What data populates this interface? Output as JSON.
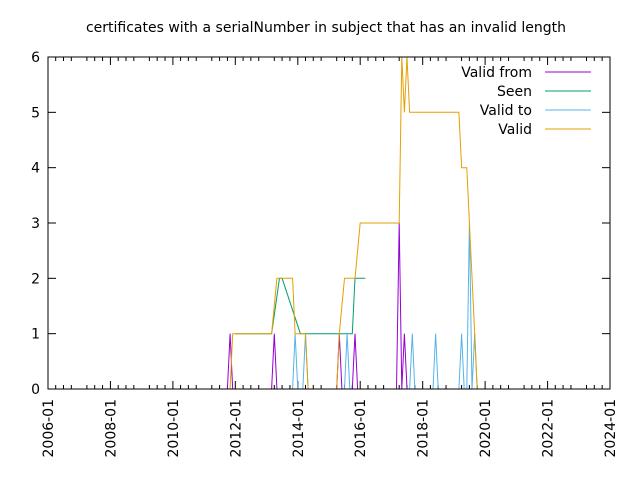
{
  "chart_data": {
    "type": "line",
    "title": "certificates with a serialNumber in subject that has an invalid length",
    "xlabel": "",
    "ylabel": "",
    "x_axis": "date",
    "xlim": [
      "2006-01-01",
      "2024-01-01"
    ],
    "ylim": [
      0,
      6
    ],
    "x_ticks": [
      "2006-01",
      "2008-01",
      "2010-01",
      "2012-01",
      "2014-01",
      "2016-01",
      "2018-01",
      "2020-01",
      "2022-01",
      "2024-01"
    ],
    "y_ticks": [
      0,
      1,
      2,
      3,
      4,
      5,
      6
    ],
    "grid": false,
    "legend_position": "top-right",
    "series": [
      {
        "name": "Valid from",
        "color": "#9400d3",
        "points": [
          [
            "2011-10-01",
            0
          ],
          [
            "2011-11-01",
            1
          ],
          [
            "2011-12-01",
            0
          ],
          [
            "2013-03-01",
            0
          ],
          [
            "2013-04-01",
            1
          ],
          [
            "2013-05-01",
            0
          ],
          [
            "2015-04-01",
            0
          ],
          [
            "2015-05-01",
            1
          ],
          [
            "2015-06-01",
            0
          ],
          [
            "2015-10-01",
            0
          ],
          [
            "2015-11-01",
            1
          ],
          [
            "2015-12-01",
            0
          ],
          [
            "2017-03-01",
            0
          ],
          [
            "2017-04-01",
            3
          ],
          [
            "2017-05-01",
            0
          ],
          [
            "2017-06-01",
            1
          ],
          [
            "2017-07-01",
            0
          ]
        ]
      },
      {
        "name": "Seen",
        "color": "#009e73",
        "points": [
          [
            "2012-01-01",
            1
          ],
          [
            "2013-03-01",
            1
          ],
          [
            "2013-06-01",
            2
          ],
          [
            "2013-07-01",
            2
          ],
          [
            "2014-02-01",
            1
          ],
          [
            "2014-03-01",
            1
          ],
          [
            "2015-05-01",
            1
          ],
          [
            "2015-10-01",
            1
          ],
          [
            "2015-11-01",
            2
          ],
          [
            "2016-03-01",
            2
          ]
        ]
      },
      {
        "name": "Valid to",
        "color": "#56b4e9",
        "points": [
          [
            "2013-11-01",
            0
          ],
          [
            "2013-12-01",
            1
          ],
          [
            "2014-01-01",
            0
          ],
          [
            "2014-03-01",
            0
          ],
          [
            "2014-04-01",
            1
          ],
          [
            "2014-05-01",
            0
          ],
          [
            "2015-07-01",
            0
          ],
          [
            "2015-08-01",
            1
          ],
          [
            "2015-09-01",
            0
          ],
          [
            "2017-08-01",
            0
          ],
          [
            "2017-09-01",
            1
          ],
          [
            "2017-10-01",
            0
          ],
          [
            "2018-05-01",
            0
          ],
          [
            "2018-06-01",
            1
          ],
          [
            "2018-07-01",
            0
          ],
          [
            "2019-03-01",
            0
          ],
          [
            "2019-04-01",
            1
          ],
          [
            "2019-05-01",
            0
          ],
          [
            "2019-06-01",
            0
          ],
          [
            "2019-07-01",
            3
          ],
          [
            "2019-08-01",
            0
          ],
          [
            "2019-09-01",
            1
          ],
          [
            "2019-10-01",
            0
          ]
        ]
      },
      {
        "name": "Valid",
        "color": "#e69f00",
        "points": [
          [
            "2011-11-01",
            0
          ],
          [
            "2011-12-01",
            1
          ],
          [
            "2013-03-01",
            1
          ],
          [
            "2013-05-01",
            2
          ],
          [
            "2013-11-01",
            2
          ],
          [
            "2013-12-01",
            1
          ],
          [
            "2014-04-01",
            1
          ],
          [
            "2014-05-01",
            0
          ],
          [
            "2015-04-01",
            0
          ],
          [
            "2015-05-01",
            1
          ],
          [
            "2015-07-01",
            2
          ],
          [
            "2015-11-01",
            2
          ],
          [
            "2016-01-01",
            3
          ],
          [
            "2017-04-01",
            3
          ],
          [
            "2017-05-01",
            6
          ],
          [
            "2017-06-01",
            5
          ],
          [
            "2017-07-01",
            6
          ],
          [
            "2017-08-01",
            5
          ],
          [
            "2019-03-01",
            5
          ],
          [
            "2019-04-01",
            4
          ],
          [
            "2019-06-01",
            4
          ],
          [
            "2019-09-01",
            1
          ],
          [
            "2019-10-01",
            0
          ]
        ]
      }
    ]
  }
}
